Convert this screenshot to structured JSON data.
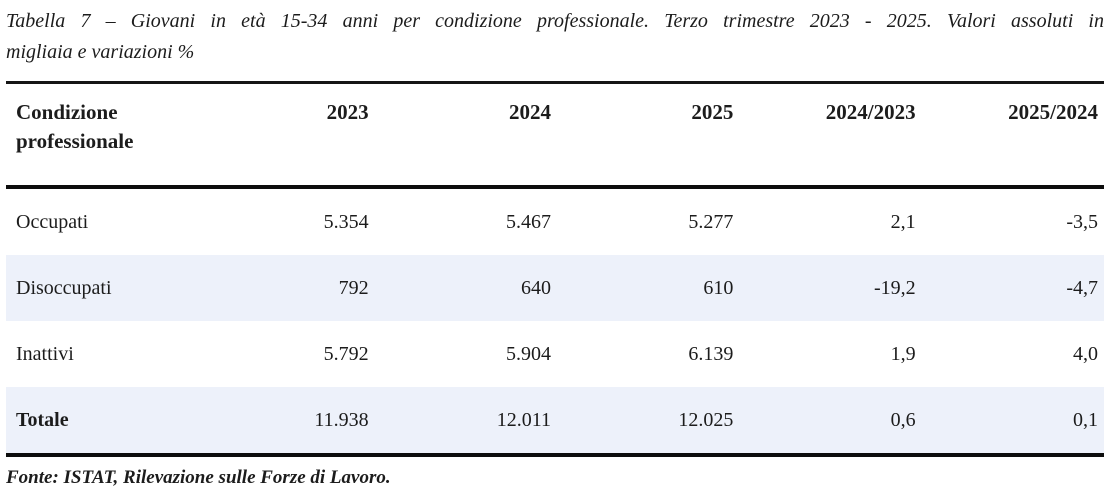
{
  "caption": {
    "line1": "Tabella 7 – Giovani in età 15-34 anni per condizione professionale. Terzo trimestre 2023 - 2025. Valori assoluti in",
    "line2": "migliaia e variazioni %"
  },
  "table": {
    "headers": [
      "Condizione professionale",
      "2023",
      "2024",
      "2025",
      "2024/2023",
      "2025/2024"
    ],
    "rows": [
      {
        "label": "Occupati",
        "values": [
          "5.354",
          "5.467",
          "5.277",
          "2,1",
          "-3,5"
        ]
      },
      {
        "label": "Disoccupati",
        "values": [
          "792",
          "640",
          "610",
          "-19,2",
          "-4,7"
        ]
      },
      {
        "label": "Inattivi",
        "values": [
          "5.792",
          "5.904",
          "6.139",
          "1,9",
          "4,0"
        ]
      },
      {
        "label": "Totale",
        "values": [
          "11.938",
          "12.011",
          "12.025",
          "0,6",
          "0,1"
        ]
      }
    ]
  },
  "footer": {
    "source": "Fonte: ISTAT, Rilevazione sulle Forze di Lavoro."
  },
  "colors": {
    "row_highlight": "#edf1fa",
    "rule": "#0d0d0d",
    "text": "#1c1c1c",
    "background": "#ffffff"
  }
}
